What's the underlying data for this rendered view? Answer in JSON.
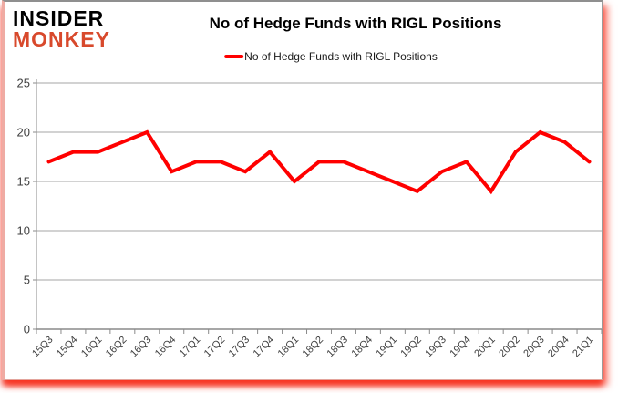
{
  "brand": {
    "line1": "INSIDER",
    "line2": "MONKEY"
  },
  "header": {
    "title": "No of Hedge Funds with RIGL Positions"
  },
  "legend": {
    "label": "No of Hedge Funds with RIGL Positions"
  },
  "colors": {
    "series": "#ff0000",
    "brand_black": "#000000",
    "brand_red": "#d8492c",
    "gridline": "#a6a6a6",
    "axis": "#8a8a8a",
    "tick_label": "#3f3f3f",
    "title": "#000000",
    "shadow_red": "#f21605"
  },
  "chart_data": {
    "type": "line",
    "title": "No of Hedge Funds with RIGL Positions",
    "categories": [
      "15Q3",
      "15Q4",
      "16Q1",
      "16Q2",
      "16Q3",
      "16Q4",
      "17Q1",
      "17Q2",
      "17Q3",
      "17Q4",
      "18Q1",
      "18Q2",
      "18Q3",
      "18Q4",
      "19Q1",
      "19Q2",
      "19Q3",
      "19Q4",
      "20Q1",
      "20Q2",
      "20Q3",
      "20Q4",
      "21Q1"
    ],
    "series": [
      {
        "name": "No of Hedge Funds with RIGL Positions",
        "color": "#ff0000",
        "values": [
          17,
          18,
          18,
          19,
          20,
          16,
          17,
          17,
          16,
          18,
          15,
          17,
          17,
          16,
          15,
          14,
          16,
          17,
          14,
          18,
          20,
          19,
          17
        ]
      }
    ],
    "xlabel": "",
    "ylabel": "",
    "ylim": [
      0,
      25
    ],
    "yticks": [
      0,
      5,
      10,
      15,
      20,
      25
    ],
    "grid": true,
    "legend_position": "top-center"
  }
}
